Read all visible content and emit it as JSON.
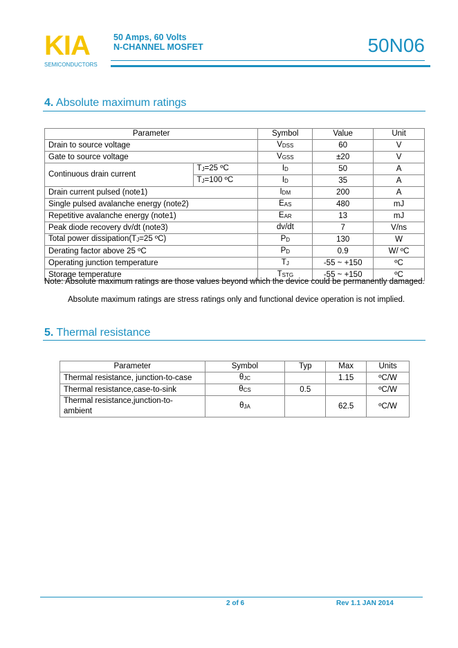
{
  "header": {
    "logo_text": "KIA",
    "logo_sub": "SEMICONDUCTORS",
    "subtitle_line1": "50 Amps, 60 Volts",
    "subtitle_line2": "N-CHANNEL MOSFET",
    "part_number": "50N06"
  },
  "section4": {
    "number": "4.",
    "title": "Absolute maximum ratings",
    "headers": [
      "Parameter",
      "Symbol",
      "Value",
      "Unit"
    ],
    "rows": [
      {
        "param": "Drain to source voltage",
        "sym": "V",
        "sub": "DSS",
        "value": "60",
        "unit": "V"
      },
      {
        "param": "Gate to source voltage",
        "sym": "V",
        "sub": "GSS",
        "value": "±20",
        "unit": "V"
      },
      {
        "param": "Continuous drain current",
        "cond": "T",
        "cond_sub": "J",
        "cond_rest": "=25 ºC",
        "sym": "I",
        "sub": "D",
        "value": "50",
        "unit": "A"
      },
      {
        "cond": "T",
        "cond_sub": "J",
        "cond_rest": "=100 ºC",
        "sym": "I",
        "sub": "D",
        "value": "35",
        "unit": "A"
      },
      {
        "param": "Drain current pulsed    (note1)",
        "sym": "I",
        "sub": "DM",
        "value": "200",
        "unit": "A"
      },
      {
        "param": "Single pulsed avalanche energy    (note2)",
        "sym": "E",
        "sub": "AS",
        "value": "480",
        "unit": "mJ"
      },
      {
        "param": "Repetitive avalanche energy    (note1)",
        "sym": "E",
        "sub": "AR",
        "value": "13",
        "unit": "mJ"
      },
      {
        "param": "Peak diode recovery dv/dt    (note3)",
        "sym": "dv/dt",
        "sub": "",
        "value": "7",
        "unit": "V/ns"
      },
      {
        "param": "Total power dissipation(T",
        "param_sub": "J",
        "param_rest": "=25 ºC)",
        "sym": "P",
        "sub": "D",
        "value": "130",
        "unit": "W"
      },
      {
        "param": "Derating factor above 25 ºC",
        "sym": "P",
        "sub": "D",
        "value": "0.9",
        "unit": "W/ ºC"
      },
      {
        "param": "Operating junction temperature",
        "sym": "T",
        "sub": "J",
        "value": "-55 ~ +150",
        "unit": "ºC"
      },
      {
        "param": "Storage temperature",
        "sym": "T",
        "sub": "STG",
        "value": "-55 ~ +150",
        "unit": "ºC"
      }
    ],
    "note1": "Note: Absolute maximum ratings are those values beyond which the device could be permanently damaged.",
    "note2": "Absolute maximum ratings are stress ratings only and functional device operation is not implied."
  },
  "section5": {
    "number": "5.",
    "title": "Thermal resistance",
    "headers": [
      "Parameter",
      "Symbol",
      "Typ",
      "Max",
      "Units"
    ],
    "rows": [
      {
        "param": "Thermal resistance, junction-to-case",
        "sym": "θ",
        "sub": "JC",
        "typ": "",
        "max": "1.15",
        "unit": "ºC/W"
      },
      {
        "param": "Thermal resistance,case-to-sink",
        "sym": "θ",
        "sub": "CS",
        "typ": "0.5",
        "max": "",
        "unit": "ºC/W"
      },
      {
        "param": "Thermal resistance,junction-to-ambient",
        "sym": "θ",
        "sub": "JA",
        "typ": "",
        "max": "62.5",
        "unit": "ºC/W"
      }
    ]
  },
  "footer": {
    "page": "2 of 6",
    "revision": "Rev 1.1 JAN 2014"
  },
  "colors": {
    "accent": "#1a8fc0",
    "logo": "#f5c400"
  }
}
